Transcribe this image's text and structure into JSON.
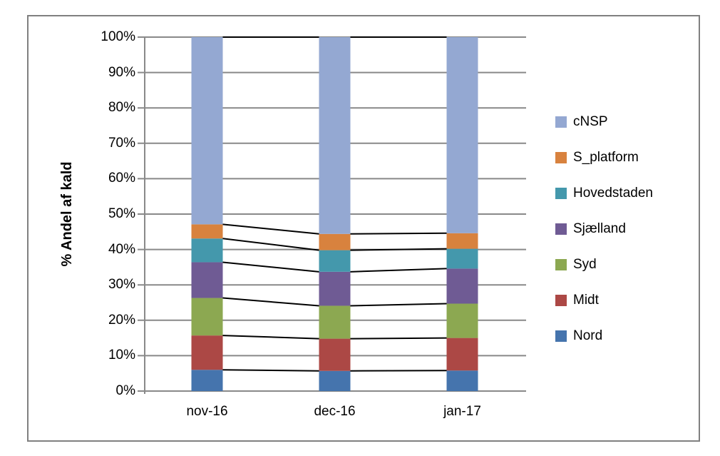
{
  "figure": {
    "background": "#FFFFFF",
    "border_color": "#808080"
  },
  "chart_data": {
    "type": "bar",
    "stacked": true,
    "percent_stacked": true,
    "title": "",
    "xlabel": "",
    "ylabel": "% Andel af kald",
    "categories": [
      "nov-16",
      "dec-16",
      "jan-17"
    ],
    "series": [
      {
        "name": "Nord",
        "color": "#4574AD",
        "values": [
          6.0,
          5.7,
          5.8
        ]
      },
      {
        "name": "Midt",
        "color": "#AC4845",
        "values": [
          9.7,
          9.1,
          9.2
        ]
      },
      {
        "name": "Syd",
        "color": "#8CA851",
        "values": [
          10.6,
          9.3,
          9.7
        ]
      },
      {
        "name": "Sjælland",
        "color": "#6F5B94",
        "values": [
          10.1,
          9.6,
          9.9
        ]
      },
      {
        "name": "Hovedstaden",
        "color": "#4498AC",
        "values": [
          6.7,
          6.1,
          5.6
        ]
      },
      {
        "name": "S_platform",
        "color": "#D8823E",
        "values": [
          4.0,
          4.6,
          4.4
        ]
      },
      {
        "name": "cNSP",
        "color": "#94A8D2",
        "values": [
          52.9,
          55.6,
          55.4
        ]
      }
    ],
    "y_ticks": [
      "0%",
      "10%",
      "20%",
      "30%",
      "40%",
      "50%",
      "60%",
      "70%",
      "80%",
      "90%",
      "100%"
    ],
    "ylim": [
      0,
      100
    ],
    "grid": true,
    "legend_position": "right",
    "legend_order": [
      "cNSP",
      "S_platform",
      "Hovedstaden",
      "Sjælland",
      "Syd",
      "Midt",
      "Nord"
    ],
    "series_connector_lines": true,
    "colors": {
      "gridline": "#898989",
      "axis_line": "#898989",
      "connector_line": "#000000",
      "text": "#000000"
    }
  }
}
